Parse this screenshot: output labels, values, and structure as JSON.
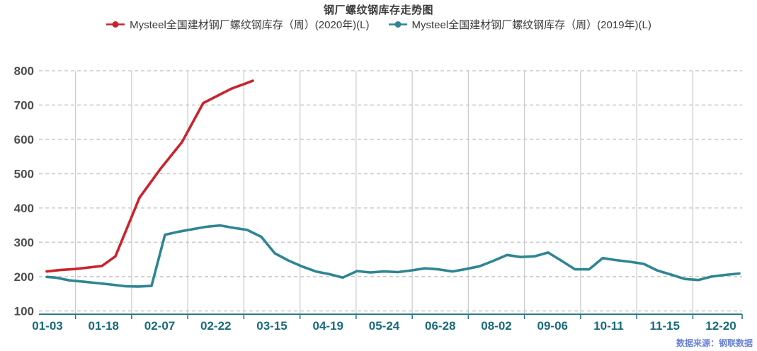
{
  "title": "钢厂螺纹钢库存走势图",
  "legend": [
    {
      "label": "Mysteel全国建材钢厂螺纹钢库存（周）(2020年)(L)",
      "color": "#c9242e"
    },
    {
      "label": "Mysteel全国建材钢厂螺纹钢库存（周）(2019年)(L)",
      "color": "#2f8593"
    }
  ],
  "source_note": "数据来源：钢联数据",
  "colors": {
    "series_2020": "#c9242e",
    "series_2019": "#2f8593",
    "x_axis_labels": "#1a6b7b",
    "x_axis_line": "#2a7c8a",
    "y_axis_labels": "#4d4d4d",
    "gridline": "#cccccc",
    "title_text": "#3a3a3a",
    "source_text": "#6b83d6"
  },
  "chart_data": {
    "type": "line",
    "title": "钢厂螺纹钢库存走势图",
    "xlabel": "",
    "ylabel": "",
    "ylim": [
      100,
      800
    ],
    "y_ticks": [
      800,
      700,
      600,
      500,
      400,
      300,
      200,
      100
    ],
    "x_tick_labels": [
      "01-03",
      "01-18",
      "02-07",
      "02-22",
      "03-15",
      "04-19",
      "05-24",
      "06-28",
      "08-02",
      "09-06",
      "10-11",
      "11-15",
      "12-20"
    ],
    "grid": true,
    "legend_position": "top",
    "x_unit": "pixel position along the category (weekly date) axis of the 1069px-wide chart",
    "y_unit": "inventory (万吨), left axis",
    "series": [
      {
        "name": "Mysteel全国建材钢厂螺纹钢库存（周）(2020年)(L)",
        "color": "#c9242e",
        "points": [
          [
            66,
            215
          ],
          [
            85,
            219
          ],
          [
            105,
            222
          ],
          [
            124,
            226
          ],
          [
            144,
            231
          ],
          [
            163,
            259
          ],
          [
            197,
            430
          ],
          [
            227,
            515
          ],
          [
            257,
            592
          ],
          [
            287,
            706
          ],
          [
            307,
            727
          ],
          [
            327,
            748
          ],
          [
            347,
            763
          ],
          [
            357,
            771
          ]
        ]
      },
      {
        "name": "Mysteel全国建材钢厂螺纹钢库存（周）(2019年)(L)",
        "color": "#2f8593",
        "points": [
          [
            66,
            199
          ],
          [
            79,
            197
          ],
          [
            98,
            189
          ],
          [
            118,
            185
          ],
          [
            137,
            181
          ],
          [
            156,
            177
          ],
          [
            176,
            172
          ],
          [
            195,
            171
          ],
          [
            214,
            173
          ],
          [
            233,
            322
          ],
          [
            253,
            331
          ],
          [
            272,
            338
          ],
          [
            291,
            345
          ],
          [
            311,
            349
          ],
          [
            330,
            342
          ],
          [
            349,
            336
          ],
          [
            369,
            316
          ],
          [
            388,
            268
          ],
          [
            407,
            247
          ],
          [
            426,
            230
          ],
          [
            446,
            215
          ],
          [
            465,
            207
          ],
          [
            484,
            197
          ],
          [
            504,
            216
          ],
          [
            523,
            212
          ],
          [
            542,
            215
          ],
          [
            562,
            213
          ],
          [
            581,
            218
          ],
          [
            600,
            224
          ],
          [
            619,
            221
          ],
          [
            639,
            215
          ],
          [
            658,
            222
          ],
          [
            677,
            230
          ],
          [
            697,
            246
          ],
          [
            716,
            263
          ],
          [
            735,
            257
          ],
          [
            755,
            259
          ],
          [
            774,
            270
          ],
          [
            793,
            246
          ],
          [
            812,
            221
          ],
          [
            832,
            221
          ],
          [
            851,
            254
          ],
          [
            870,
            248
          ],
          [
            890,
            243
          ],
          [
            909,
            237
          ],
          [
            928,
            218
          ],
          [
            947,
            206
          ],
          [
            967,
            193
          ],
          [
            986,
            190
          ],
          [
            1005,
            200
          ],
          [
            1025,
            205
          ],
          [
            1044,
            209
          ]
        ]
      }
    ]
  }
}
